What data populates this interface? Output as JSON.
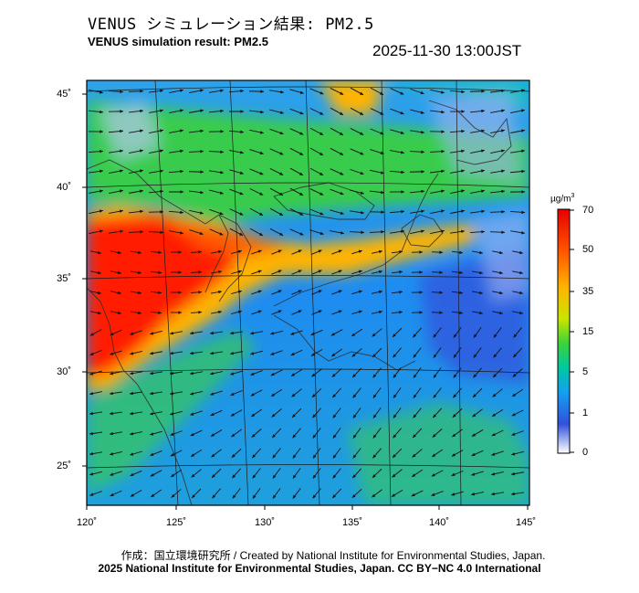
{
  "header": {
    "title_ja": "VENUS シミュレーション結果: PM2.5",
    "title_en": "VENUS simulation result: PM2.5",
    "timestamp": "2025-11-30 13:00JST"
  },
  "map": {
    "lat_labels": [
      "45˚",
      "40˚",
      "35˚",
      "30˚",
      "25˚"
    ],
    "lon_labels": [
      "120˚",
      "125˚",
      "130˚",
      "135˚",
      "140˚",
      "145˚"
    ]
  },
  "colorbar": {
    "unit": "µg/m",
    "unit_superscript": "3",
    "labels": [
      "70",
      "50",
      "35",
      "15",
      "5",
      "1",
      "0"
    ],
    "colors": [
      "#ff0000",
      "#ff5500",
      "#ffa500",
      "#e6e600",
      "#64dc14",
      "#00c864",
      "#00b4c8",
      "#1e82f0",
      "#3c3cd2",
      "#ffffff"
    ]
  },
  "footer": {
    "credit_line": "作成：国立環境研究所 / Created by National Institute for Environmental Studies, Japan.",
    "copyright_line": "2025 National Institute for Environmental Studies, Japan. CC BY−NC 4.0 International"
  }
}
